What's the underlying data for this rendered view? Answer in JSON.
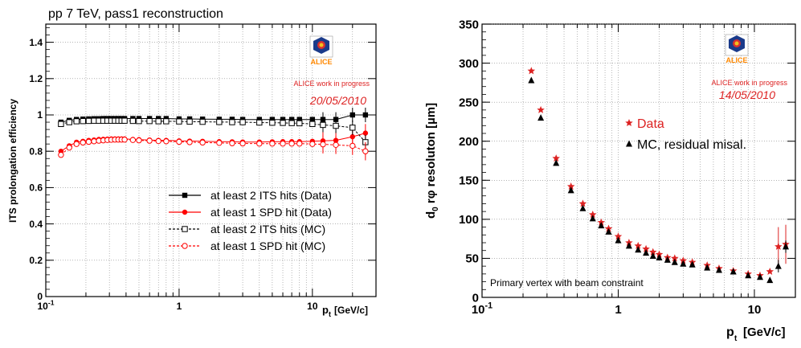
{
  "chart_data": [
    {
      "type": "scatter",
      "title": "pp 7 TeV, pass1 reconstruction",
      "xlabel_main": "p",
      "xlabel_sub": "t",
      "xlabel_unit": "[GeV/c]",
      "ylabel": "ITS prolongation efficiency",
      "xscale": "log",
      "xlim": [
        0.1,
        30
      ],
      "ylim": [
        0,
        1.5
      ],
      "grid": true,
      "x_ticks": [
        0.1,
        1,
        10
      ],
      "x_tick_labels": [
        {
          "base": "10",
          "exp": "-1"
        },
        {
          "base": "1",
          "exp": ""
        },
        {
          "base": "10",
          "exp": ""
        }
      ],
      "y_ticks": [
        0,
        0.2,
        0.4,
        0.6,
        0.8,
        1,
        1.2,
        1.4
      ],
      "y_tick_labels": [
        "0",
        "0.2",
        "0.4",
        "0.6",
        "0.8",
        "1",
        "1.2",
        "1.4"
      ],
      "logo_text": "ALICE",
      "annotation_1": "ALICE work in progress",
      "annotation_2": "20/05/2010",
      "legend_position": "bottom-right",
      "series": [
        {
          "name": "at least 2 ITS hits (Data)",
          "color": "#000000",
          "marker": "filled-square",
          "line": "solid",
          "x": [
            0.13,
            0.15,
            0.17,
            0.19,
            0.21,
            0.23,
            0.25,
            0.27,
            0.29,
            0.31,
            0.33,
            0.35,
            0.37,
            0.39,
            0.45,
            0.5,
            0.6,
            0.7,
            0.8,
            1.0,
            1.2,
            1.5,
            2.0,
            2.5,
            3.0,
            4.0,
            5.0,
            6.0,
            7.0,
            8.0,
            10.0,
            12.0,
            15.0,
            20.0,
            25.0
          ],
          "y": [
            0.96,
            0.97,
            0.975,
            0.977,
            0.978,
            0.979,
            0.979,
            0.98,
            0.98,
            0.98,
            0.98,
            0.98,
            0.98,
            0.98,
            0.98,
            0.98,
            0.98,
            0.98,
            0.98,
            0.978,
            0.978,
            0.977,
            0.976,
            0.976,
            0.975,
            0.975,
            0.975,
            0.975,
            0.975,
            0.975,
            0.975,
            0.975,
            0.975,
            1.0,
            1.0
          ]
        },
        {
          "name": "at least 1 SPD hit (Data)",
          "color": "#ff0000",
          "marker": "filled-circle",
          "line": "solid",
          "x": [
            0.13,
            0.15,
            0.17,
            0.19,
            0.21,
            0.23,
            0.25,
            0.27,
            0.29,
            0.31,
            0.33,
            0.35,
            0.37,
            0.39,
            0.45,
            0.5,
            0.6,
            0.7,
            0.8,
            1.0,
            1.2,
            1.5,
            2.0,
            2.5,
            3.0,
            4.0,
            5.0,
            6.0,
            7.0,
            8.0,
            10.0,
            12.0,
            15.0,
            20.0,
            25.0
          ],
          "y": [
            0.8,
            0.83,
            0.85,
            0.855,
            0.86,
            0.862,
            0.865,
            0.866,
            0.867,
            0.868,
            0.868,
            0.868,
            0.868,
            0.868,
            0.865,
            0.864,
            0.862,
            0.86,
            0.86,
            0.857,
            0.856,
            0.855,
            0.853,
            0.852,
            0.851,
            0.851,
            0.852,
            0.853,
            0.853,
            0.853,
            0.855,
            0.857,
            0.86,
            0.88,
            0.9
          ]
        },
        {
          "name": "at least 2 ITS hits (MC)",
          "color": "#000000",
          "marker": "open-square",
          "line": "dashed",
          "x": [
            0.13,
            0.15,
            0.17,
            0.19,
            0.21,
            0.23,
            0.25,
            0.27,
            0.29,
            0.31,
            0.33,
            0.35,
            0.37,
            0.39,
            0.45,
            0.5,
            0.6,
            0.7,
            0.8,
            1.0,
            1.2,
            1.5,
            2.0,
            2.5,
            3.0,
            4.0,
            5.0,
            6.0,
            7.0,
            8.0,
            10.0,
            12.0,
            15.0,
            20.0,
            25.0
          ],
          "y": [
            0.95,
            0.96,
            0.965,
            0.966,
            0.967,
            0.968,
            0.968,
            0.968,
            0.968,
            0.968,
            0.968,
            0.968,
            0.968,
            0.968,
            0.967,
            0.966,
            0.966,
            0.965,
            0.965,
            0.964,
            0.963,
            0.962,
            0.961,
            0.96,
            0.96,
            0.958,
            0.957,
            0.956,
            0.955,
            0.954,
            0.95,
            0.945,
            0.94,
            0.93,
            0.85
          ]
        },
        {
          "name": "at least 1 SPD hit (MC)",
          "color": "#ff0000",
          "marker": "open-circle",
          "line": "dashed",
          "x": [
            0.13,
            0.15,
            0.17,
            0.19,
            0.21,
            0.23,
            0.25,
            0.27,
            0.29,
            0.31,
            0.33,
            0.35,
            0.37,
            0.39,
            0.45,
            0.5,
            0.6,
            0.7,
            0.8,
            1.0,
            1.2,
            1.5,
            2.0,
            2.5,
            3.0,
            4.0,
            5.0,
            6.0,
            7.0,
            8.0,
            10.0,
            12.0,
            15.0,
            20.0,
            25.0
          ],
          "y": [
            0.78,
            0.82,
            0.84,
            0.848,
            0.852,
            0.855,
            0.858,
            0.86,
            0.862,
            0.863,
            0.864,
            0.864,
            0.864,
            0.864,
            0.862,
            0.86,
            0.858,
            0.856,
            0.855,
            0.852,
            0.85,
            0.848,
            0.846,
            0.844,
            0.843,
            0.842,
            0.842,
            0.842,
            0.842,
            0.842,
            0.84,
            0.838,
            0.835,
            0.83,
            0.8
          ]
        }
      ]
    },
    {
      "type": "scatter",
      "xlabel_main": "p",
      "xlabel_sub": "t",
      "xlabel_unit": "[GeV/c]",
      "ylabel_main": "d",
      "ylabel_sub": "0",
      "ylabel_rest": " rφ resoluton [µm]",
      "xscale": "log",
      "xlim": [
        0.1,
        20
      ],
      "ylim": [
        0,
        350
      ],
      "grid": true,
      "x_ticks": [
        0.1,
        1,
        10
      ],
      "x_tick_labels": [
        {
          "base": "10",
          "exp": "-1"
        },
        {
          "base": "1",
          "exp": ""
        },
        {
          "base": "10",
          "exp": ""
        }
      ],
      "y_ticks": [
        0,
        50,
        100,
        150,
        200,
        250,
        300,
        350
      ],
      "y_tick_labels": [
        "0",
        "50",
        "100",
        "150",
        "200",
        "250",
        "300",
        "350"
      ],
      "logo_text": "ALICE",
      "annotation_1": "ALICE work in progress",
      "annotation_2": "14/05/2010",
      "annotation_3": "Primary vertex with beam constraint",
      "legend_position": "middle-right",
      "series": [
        {
          "name": "Data",
          "color": "#dd2222",
          "marker": "star",
          "x": [
            0.23,
            0.27,
            0.35,
            0.45,
            0.55,
            0.65,
            0.75,
            0.85,
            1.0,
            1.2,
            1.4,
            1.6,
            1.8,
            2.0,
            2.3,
            2.6,
            3.0,
            3.5,
            4.5,
            5.5,
            7.0,
            9.0,
            11.0,
            13.0,
            15.0,
            17.0
          ],
          "y": [
            290,
            240,
            178,
            142,
            120,
            106,
            96,
            88,
            78,
            70,
            66,
            62,
            58,
            55,
            51,
            50,
            47,
            45,
            41,
            37,
            34,
            30,
            28,
            33,
            65,
            68
          ]
        },
        {
          "name": "MC, residual misal.",
          "color": "#000000",
          "marker": "filled-triangle",
          "x": [
            0.23,
            0.27,
            0.35,
            0.45,
            0.55,
            0.65,
            0.75,
            0.85,
            1.0,
            1.2,
            1.4,
            1.6,
            1.8,
            2.0,
            2.3,
            2.6,
            3.0,
            3.5,
            4.5,
            5.5,
            7.0,
            9.0,
            11.0,
            13.0,
            15.0,
            17.0
          ],
          "y": [
            278,
            230,
            172,
            137,
            114,
            101,
            92,
            84,
            73,
            66,
            61,
            57,
            53,
            51,
            48,
            45,
            43,
            42,
            38,
            35,
            33,
            28,
            26,
            22,
            40,
            65
          ]
        }
      ]
    }
  ]
}
